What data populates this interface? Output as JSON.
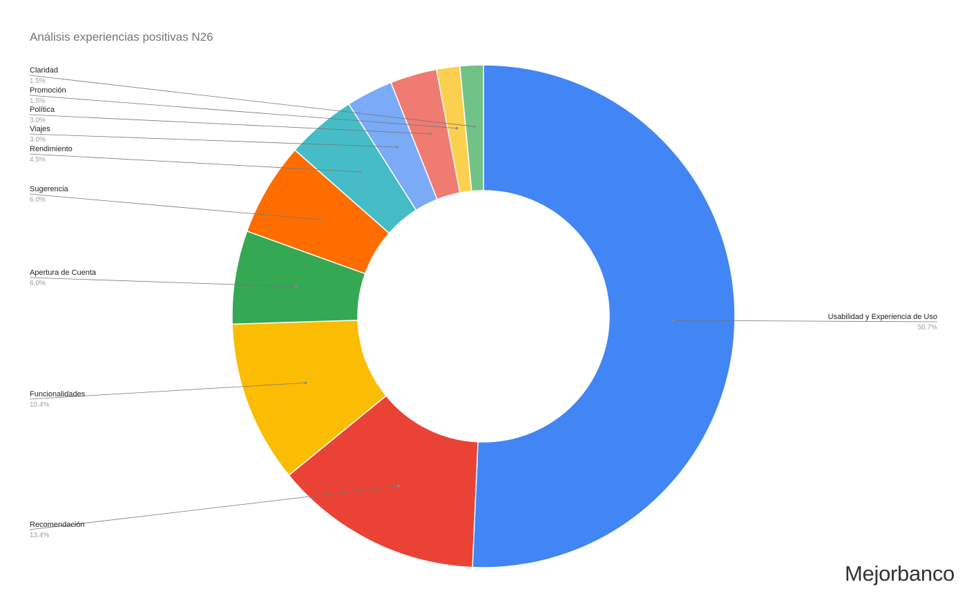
{
  "chart_data": {
    "type": "pie",
    "variant": "donut",
    "title": "Análisis experiencias positivas N26",
    "slices": [
      {
        "label": "Usabilidad y Experiencia de Uso",
        "value": 50.7,
        "display": "50.7%",
        "color": "#4285F4"
      },
      {
        "label": "Recomendación",
        "value": 13.4,
        "display": "13.4%",
        "color": "#EA4335"
      },
      {
        "label": "Funcionalidades",
        "value": 10.4,
        "display": "10.4%",
        "color": "#FBBC04"
      },
      {
        "label": "Apertura de Cuenta",
        "value": 6.0,
        "display": "6.0%",
        "color": "#34A853"
      },
      {
        "label": "Sugerencia",
        "value": 6.0,
        "display": "6.0%",
        "color": "#FF6D01"
      },
      {
        "label": "Rendimiento",
        "value": 4.5,
        "display": "4.5%",
        "color": "#46BDC6"
      },
      {
        "label": "Viajes",
        "value": 3.0,
        "display": "3.0%",
        "color": "#7BAAF7"
      },
      {
        "label": "Política",
        "value": 3.0,
        "display": "3.0%",
        "color": "#F07B72"
      },
      {
        "label": "Promoción",
        "value": 1.5,
        "display": "1.5%",
        "color": "#FCD04F"
      },
      {
        "label": "Claridad",
        "value": 1.5,
        "display": "1.5%",
        "color": "#71C287"
      }
    ],
    "legend": "none",
    "label_placement": "outside-with-leader-lines"
  },
  "watermark": "Mejorbanco"
}
